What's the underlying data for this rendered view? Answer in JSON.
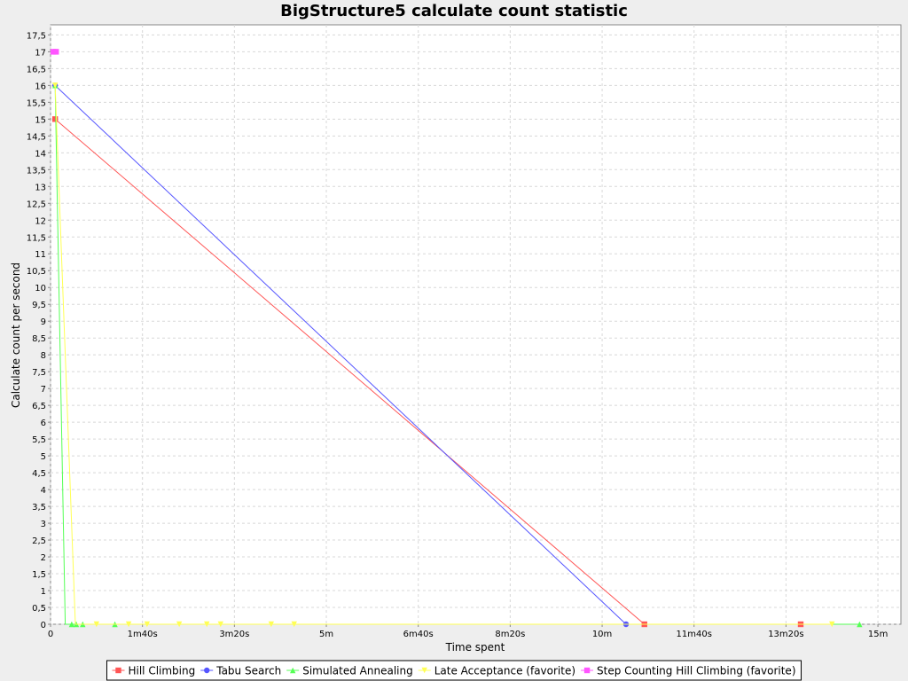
{
  "chart_data": {
    "type": "line",
    "title": "BigStructure5 calculate count statistic",
    "xlabel": "Time spent",
    "ylabel": "Calculate count per second",
    "xlim": [
      0,
      925
    ],
    "ylim": [
      0,
      17.8
    ],
    "x_ticks": [
      {
        "value": 0,
        "label": "0"
      },
      {
        "value": 100,
        "label": "1m40s"
      },
      {
        "value": 200,
        "label": "3m20s"
      },
      {
        "value": 300,
        "label": "5m"
      },
      {
        "value": 400,
        "label": "6m40s"
      },
      {
        "value": 500,
        "label": "8m20s"
      },
      {
        "value": 600,
        "label": "10m"
      },
      {
        "value": 700,
        "label": "11m40s"
      },
      {
        "value": 800,
        "label": "13m20s"
      },
      {
        "value": 900,
        "label": "15m"
      }
    ],
    "y_ticks": [
      "0",
      "0,5",
      "1",
      "1,5",
      "2",
      "2,5",
      "3",
      "3,5",
      "4",
      "4,5",
      "5",
      "5,5",
      "6",
      "6,5",
      "7",
      "7,5",
      "8",
      "8,5",
      "9",
      "9,5",
      "10",
      "10,5",
      "11",
      "11,5",
      "12",
      "12,5",
      "13",
      "13,5",
      "14",
      "14,5",
      "15",
      "15,5",
      "16",
      "16,5",
      "17",
      "17,5"
    ],
    "grid": true,
    "legend_position": "bottom",
    "series": [
      {
        "name": "Hill Climbing",
        "color": "#ff5555",
        "marker": "square",
        "points": [
          [
            5,
            15
          ],
          [
            646,
            0
          ]
        ],
        "extra_markers": [
          [
            816,
            0
          ]
        ]
      },
      {
        "name": "Tabu Search",
        "color": "#5555ff",
        "marker": "circle",
        "points": [
          [
            5,
            16
          ],
          [
            626,
            0
          ]
        ],
        "extra_markers": []
      },
      {
        "name": "Simulated Annealing",
        "color": "#55ff55",
        "marker": "triangle",
        "points": [
          [
            5,
            16
          ],
          [
            16,
            0
          ],
          [
            22,
            0
          ],
          [
            28,
            0
          ],
          [
            35,
            0
          ],
          [
            70,
            0
          ],
          [
            100,
            0
          ],
          [
            200,
            0
          ],
          [
            300,
            0
          ],
          [
            400,
            0
          ],
          [
            500,
            0
          ],
          [
            600,
            0
          ],
          [
            700,
            0
          ],
          [
            880,
            0
          ]
        ],
        "extra_markers": [
          [
            23,
            0
          ],
          [
            28,
            0
          ],
          [
            35,
            0
          ],
          [
            70,
            0
          ],
          [
            880,
            0
          ]
        ]
      },
      {
        "name": "Late Acceptance (favorite)",
        "color": "#ffff55",
        "marker": "triangle-down",
        "points": [
          [
            5,
            16
          ],
          [
            27,
            0
          ],
          [
            50,
            0
          ],
          [
            100,
            0
          ],
          [
            200,
            0
          ],
          [
            300,
            0
          ],
          [
            400,
            0
          ],
          [
            500,
            0
          ],
          [
            600,
            0
          ],
          [
            700,
            0
          ],
          [
            800,
            0
          ],
          [
            850,
            0
          ]
        ],
        "extra_markers": [
          [
            50,
            0
          ],
          [
            85,
            0
          ],
          [
            105,
            0
          ],
          [
            140,
            0
          ],
          [
            170,
            0
          ],
          [
            185,
            0
          ],
          [
            240,
            0
          ],
          [
            265,
            0
          ],
          [
            850,
            0
          ]
        ]
      },
      {
        "name": "Step Counting Hill Climbing (favorite)",
        "color": "#ff55ff",
        "marker": "square",
        "points": [
          [
            3,
            17
          ],
          [
            6,
            17
          ]
        ],
        "extra_markers": []
      }
    ]
  }
}
